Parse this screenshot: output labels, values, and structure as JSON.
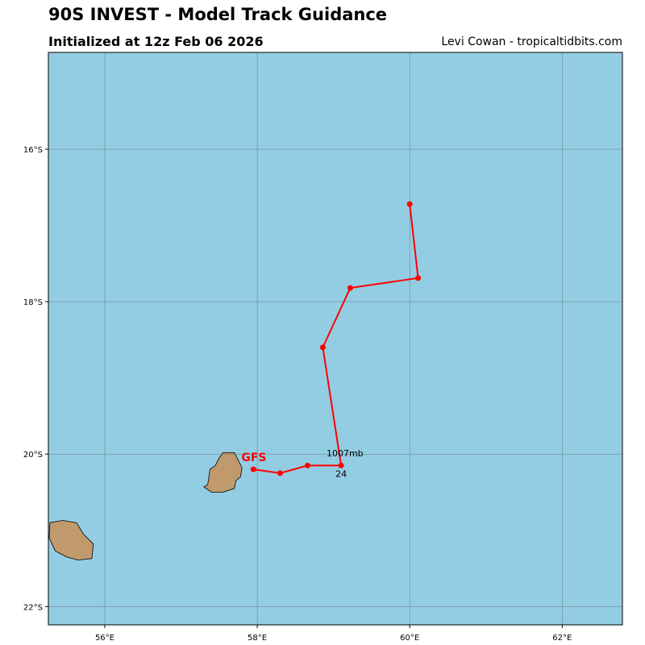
{
  "chart_data": {
    "type": "line",
    "title": "90S INVEST - Model Track Guidance",
    "subtitle": "Initialized at 12z Feb 06 2026",
    "credit": "Levi Cowan - tropicaltidbits.com",
    "xlim": [
      55.26,
      62.79
    ],
    "ylim": [
      -22.24,
      -14.73
    ],
    "xticks": [
      56,
      58,
      60,
      62
    ],
    "xtick_labels": [
      "56°E",
      "58°E",
      "60°E",
      "62°E"
    ],
    "yticks": [
      -16,
      -18,
      -20,
      -22
    ],
    "ytick_labels": [
      "16°S",
      "18°S",
      "20°S",
      "22°S"
    ],
    "grid": true,
    "colors": {
      "ocean": "#93cde3",
      "land": "#c09a6c",
      "track": "#ff0000"
    },
    "series": [
      {
        "name": "GFS",
        "lon": [
          57.95,
          58.3,
          58.66,
          59.1,
          58.86,
          59.22,
          60.11,
          60.0
        ],
        "lat": [
          -20.2,
          -20.25,
          -20.15,
          -20.15,
          -18.6,
          -17.82,
          -17.69,
          -16.72
        ]
      }
    ],
    "annotations": [
      {
        "text": "1007mb",
        "lon": 59.15,
        "lat": -20.03
      },
      {
        "text": "24",
        "lon": 59.1,
        "lat": -20.3
      }
    ],
    "land": [
      {
        "name": "Mauritius",
        "lon": [
          57.55,
          57.7,
          57.8,
          57.78,
          57.72,
          57.7,
          57.55,
          57.4,
          57.3,
          57.35,
          57.38,
          57.45,
          57.5
        ],
        "lat": [
          -19.98,
          -19.98,
          -20.18,
          -20.3,
          -20.35,
          -20.45,
          -20.5,
          -20.5,
          -20.43,
          -20.4,
          -20.2,
          -20.15,
          -20.05
        ]
      },
      {
        "name": "Reunion",
        "lon": [
          55.28,
          55.45,
          55.63,
          55.72,
          55.85,
          55.83,
          55.65,
          55.5,
          55.35,
          55.27
        ],
        "lat": [
          -20.9,
          -20.87,
          -20.9,
          -21.05,
          -21.18,
          -21.37,
          -21.39,
          -21.35,
          -21.27,
          -21.1
        ]
      }
    ]
  }
}
